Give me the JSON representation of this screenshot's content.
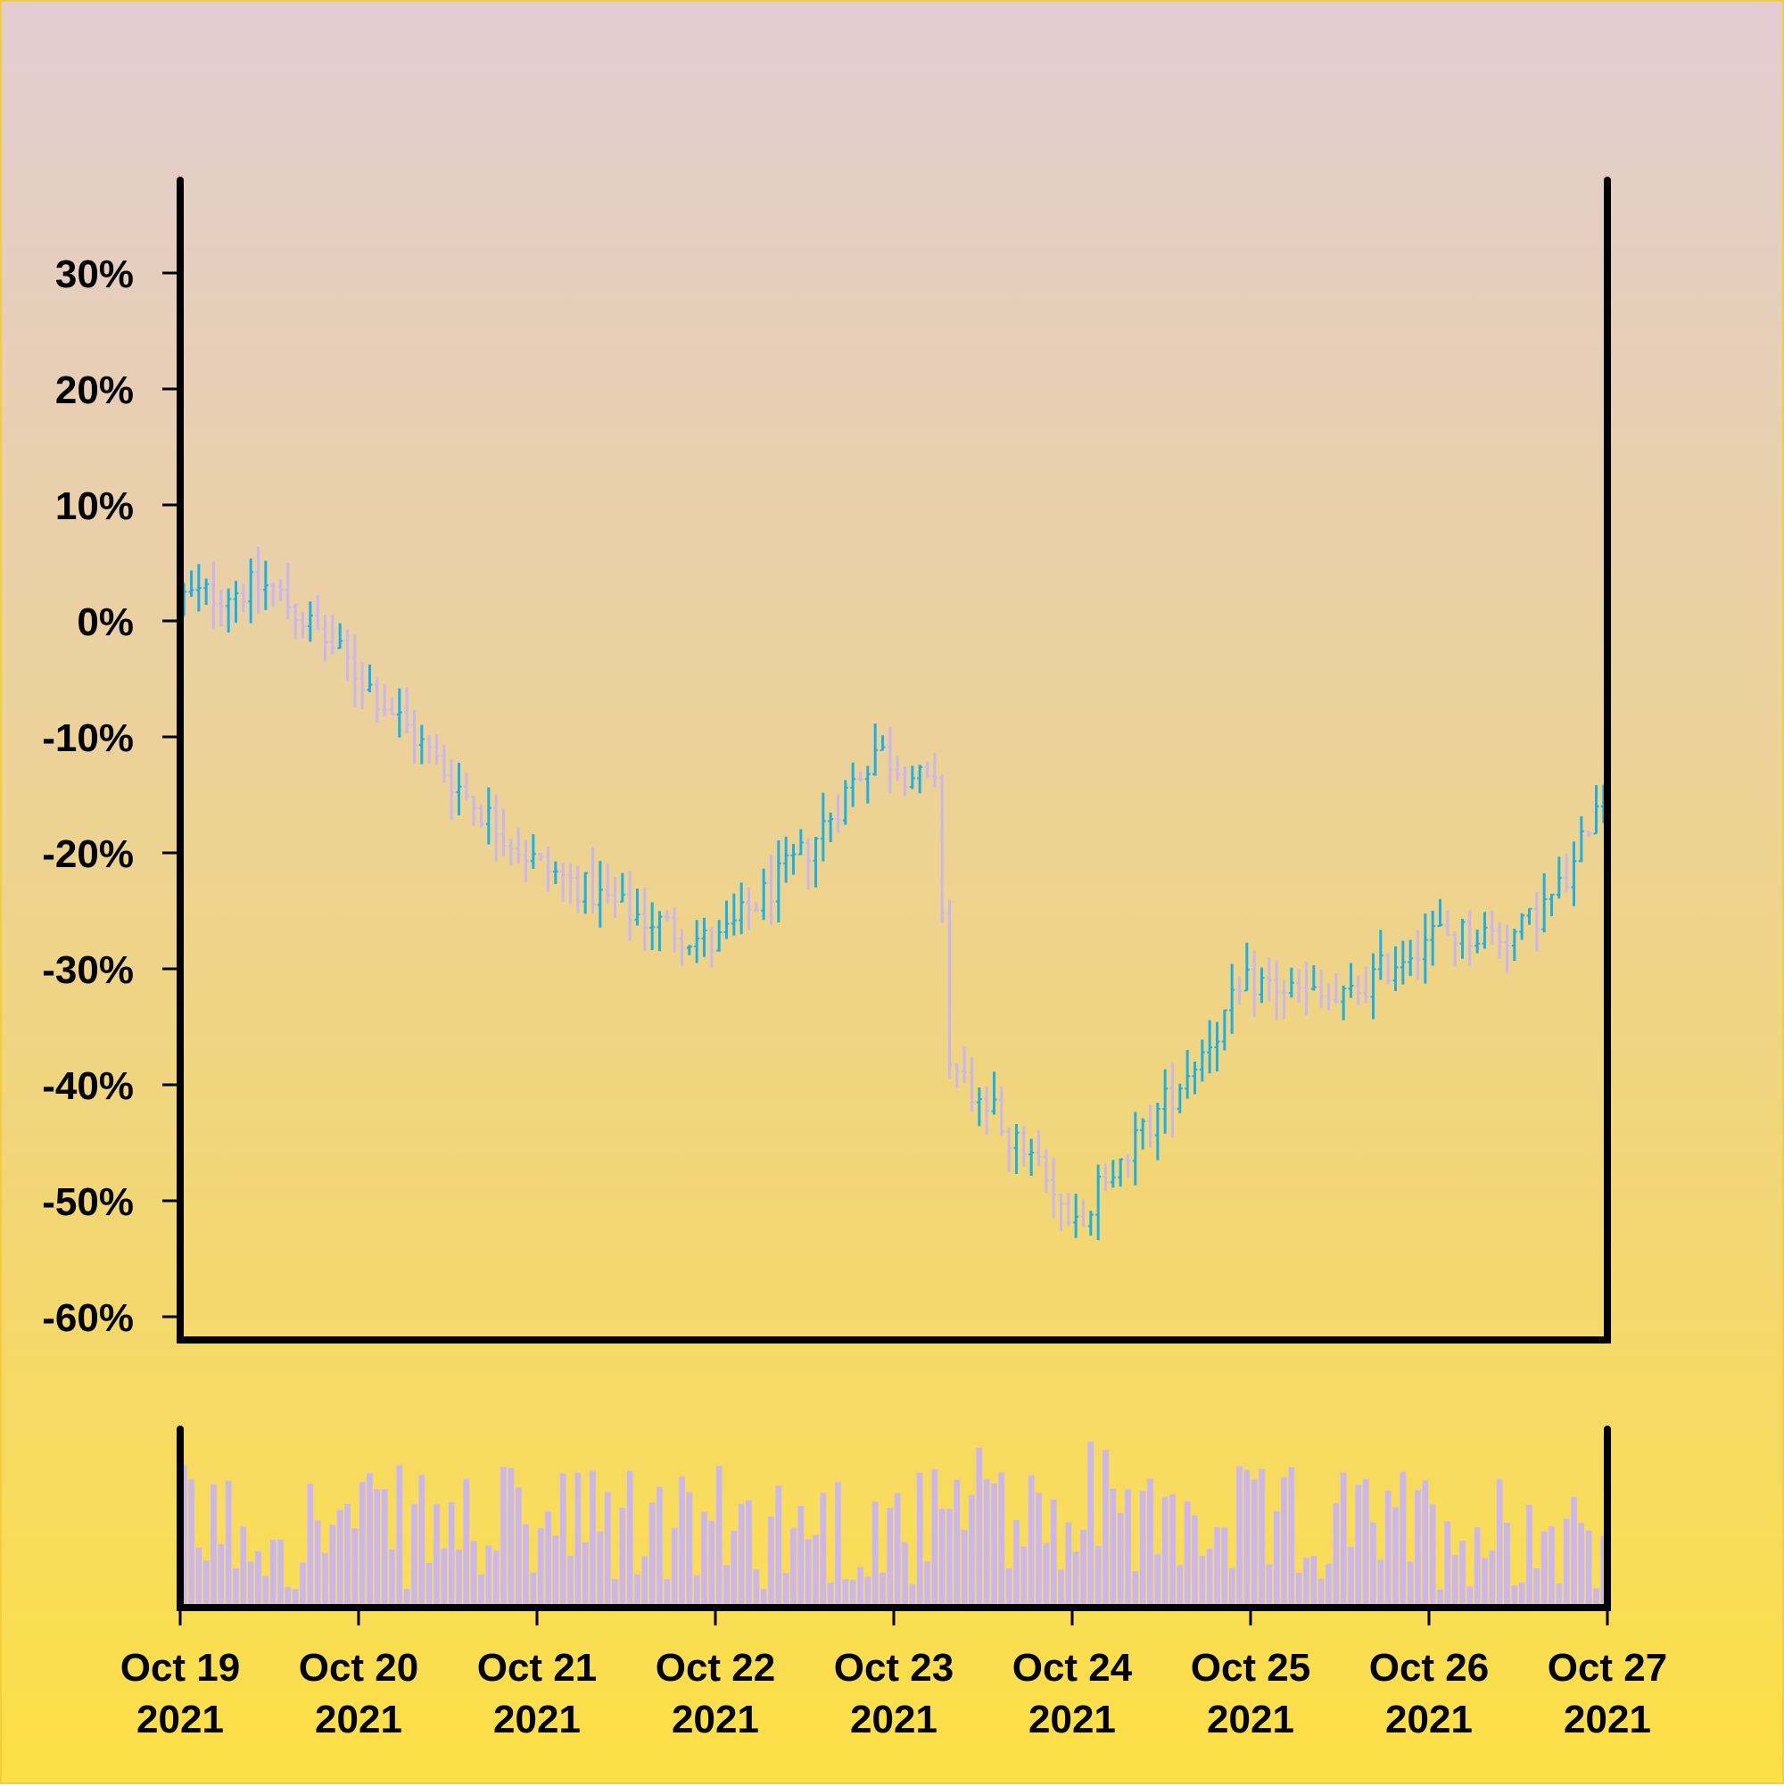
{
  "chart_data": {
    "type": "ohlc",
    "title": "",
    "xlabel": "",
    "ylabel": "",
    "ylim": [
      -62,
      38
    ],
    "y_ticks": [
      "30%",
      "20%",
      "10%",
      "0%",
      "-10%",
      "-20%",
      "-30%",
      "-40%",
      "-50%",
      "-60%"
    ],
    "y_tick_values": [
      30,
      20,
      10,
      0,
      -10,
      -20,
      -30,
      -40,
      -50,
      -60
    ],
    "x_ticks": [
      {
        "line1": "Oct 19",
        "line2": "2021"
      },
      {
        "line1": "Oct 20",
        "line2": "2021"
      },
      {
        "line1": "Oct 21",
        "line2": "2021"
      },
      {
        "line1": "Oct 22",
        "line2": "2021"
      },
      {
        "line1": "Oct 23",
        "line2": "2021"
      },
      {
        "line1": "Oct 24",
        "line2": "2021"
      },
      {
        "line1": "Oct 25",
        "line2": "2021"
      },
      {
        "line1": "Oct 26",
        "line2": "2021"
      },
      {
        "line1": "Oct 27",
        "line2": "2021"
      }
    ],
    "x_range": [
      "2021-10-19",
      "2021-10-27"
    ],
    "bars_per_day": 24,
    "trend": [
      [
        0,
        2
      ],
      [
        0.5,
        3
      ],
      [
        0.9,
        -3
      ],
      [
        1.2,
        -8
      ],
      [
        1.6,
        -15
      ],
      [
        2.0,
        -21
      ],
      [
        2.5,
        -25
      ],
      [
        3.0,
        -28
      ],
      [
        3.5,
        -20
      ],
      [
        3.9,
        -11
      ],
      [
        4.25,
        -15
      ],
      [
        4.3,
        -38
      ],
      [
        4.75,
        -46
      ],
      [
        5.0,
        -52
      ],
      [
        5.5,
        -42
      ],
      [
        6.0,
        -31
      ],
      [
        6.5,
        -33
      ],
      [
        7.0,
        -27
      ],
      [
        7.5,
        -27
      ],
      [
        7.8,
        -22
      ],
      [
        8.0,
        -12
      ]
    ],
    "volume_ylim": [
      0,
      100
    ],
    "up_color": "#1ab0e8",
    "down_color": "#cbb6f0",
    "volume_color": "#cbb6f0",
    "grid": false,
    "legend": "none"
  }
}
